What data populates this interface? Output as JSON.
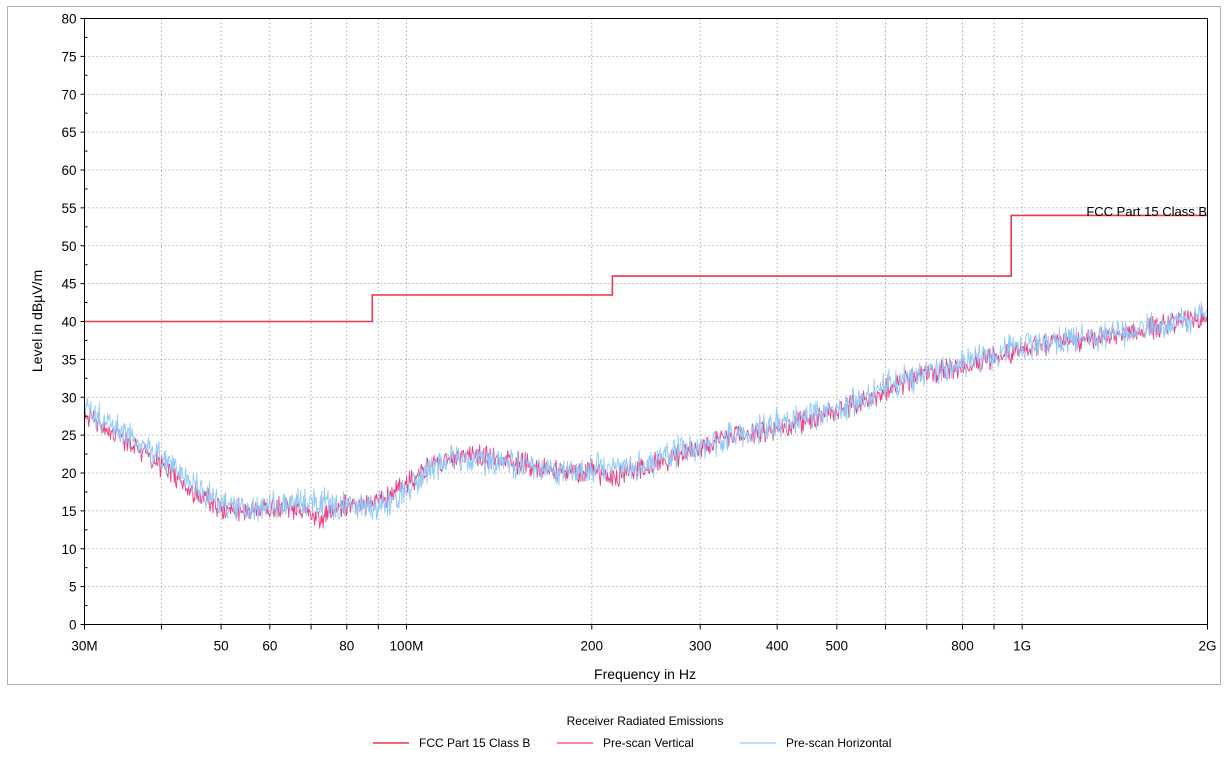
{
  "chart_data": {
    "type": "line",
    "xlabel": "Frequency in Hz",
    "ylabel": "Level in dBµV/m",
    "x_scale": "log",
    "xlim": [
      30000000,
      2000000000
    ],
    "ylim": [
      0,
      80
    ],
    "grid": true,
    "y_ticks": [
      0,
      5,
      10,
      15,
      20,
      25,
      30,
      35,
      40,
      45,
      50,
      55,
      60,
      65,
      70,
      75,
      80
    ],
    "x_tick_labels": [
      {
        "value": 30000000,
        "label": "30M"
      },
      {
        "value": 50000000,
        "label": "50"
      },
      {
        "value": 60000000,
        "label": "60"
      },
      {
        "value": 80000000,
        "label": "80"
      },
      {
        "value": 100000000,
        "label": "100M"
      },
      {
        "value": 200000000,
        "label": "200"
      },
      {
        "value": 300000000,
        "label": "300"
      },
      {
        "value": 400000000,
        "label": "400"
      },
      {
        "value": 500000000,
        "label": "500"
      },
      {
        "value": 800000000,
        "label": "800"
      },
      {
        "value": 1000000000,
        "label": "1G"
      },
      {
        "value": 2000000000,
        "label": "2G"
      }
    ],
    "x_minor_ticks": [
      40000000,
      70000000,
      90000000,
      600000000,
      700000000,
      900000000
    ],
    "legend_title": "Receiver Radiated Emissions",
    "legend_position": "bottom",
    "series": [
      {
        "name": "FCC Part 15 Class B",
        "color": "#e8394a",
        "style": "step",
        "annotation": "FCC Part 15 Class B",
        "points": [
          [
            30000000,
            40
          ],
          [
            88000000,
            40
          ],
          [
            88000000,
            43.5
          ],
          [
            216000000,
            43.5
          ],
          [
            216000000,
            46
          ],
          [
            960000000,
            46
          ],
          [
            960000000,
            54
          ],
          [
            2000000000,
            54
          ]
        ]
      },
      {
        "name": "Pre-scan Vertical",
        "color": "#ee3f85",
        "style": "noisy",
        "noise": 2.2,
        "points": [
          [
            30000000,
            27.5
          ],
          [
            33000000,
            25.5
          ],
          [
            36000000,
            23.5
          ],
          [
            40000000,
            21
          ],
          [
            45000000,
            17.5
          ],
          [
            50000000,
            15.5
          ],
          [
            55000000,
            15
          ],
          [
            60000000,
            15.3
          ],
          [
            65000000,
            15.5
          ],
          [
            70000000,
            14.5
          ],
          [
            73000000,
            14
          ],
          [
            78000000,
            15.5
          ],
          [
            85000000,
            16
          ],
          [
            92000000,
            16.5
          ],
          [
            100000000,
            18.5
          ],
          [
            110000000,
            21
          ],
          [
            120000000,
            22
          ],
          [
            130000000,
            22.5
          ],
          [
            140000000,
            22
          ],
          [
            150000000,
            21.5
          ],
          [
            170000000,
            20.5
          ],
          [
            190000000,
            20
          ],
          [
            200000000,
            20.5
          ],
          [
            215000000,
            19.5
          ],
          [
            230000000,
            20
          ],
          [
            250000000,
            21
          ],
          [
            270000000,
            22
          ],
          [
            300000000,
            23.5
          ],
          [
            350000000,
            25
          ],
          [
            400000000,
            26
          ],
          [
            450000000,
            27
          ],
          [
            500000000,
            28
          ],
          [
            550000000,
            29.5
          ],
          [
            600000000,
            31
          ],
          [
            700000000,
            33
          ],
          [
            800000000,
            34
          ],
          [
            900000000,
            35
          ],
          [
            1000000000,
            36.5
          ],
          [
            1200000000,
            37.5
          ],
          [
            1400000000,
            38
          ],
          [
            1600000000,
            39
          ],
          [
            1800000000,
            40
          ],
          [
            2000000000,
            40.5
          ]
        ]
      },
      {
        "name": "Pre-scan Horizontal",
        "color": "#93c9f6",
        "style": "noisy",
        "noise": 2.8,
        "points": [
          [
            30000000,
            28.5
          ],
          [
            33000000,
            26.5
          ],
          [
            36000000,
            24.5
          ],
          [
            40000000,
            22
          ],
          [
            45000000,
            18.5
          ],
          [
            50000000,
            16
          ],
          [
            55000000,
            15
          ],
          [
            60000000,
            15.5
          ],
          [
            65000000,
            16
          ],
          [
            70000000,
            16.2
          ],
          [
            75000000,
            16
          ],
          [
            80000000,
            15.8
          ],
          [
            85000000,
            15.5
          ],
          [
            90000000,
            15.5
          ],
          [
            95000000,
            16.5
          ],
          [
            100000000,
            18
          ],
          [
            110000000,
            20.5
          ],
          [
            120000000,
            21.8
          ],
          [
            130000000,
            22
          ],
          [
            140000000,
            21.5
          ],
          [
            150000000,
            21
          ],
          [
            170000000,
            20.5
          ],
          [
            190000000,
            20.3
          ],
          [
            200000000,
            21
          ],
          [
            210000000,
            20.5
          ],
          [
            230000000,
            20.5
          ],
          [
            250000000,
            21.5
          ],
          [
            270000000,
            22.5
          ],
          [
            300000000,
            23.5
          ],
          [
            350000000,
            25
          ],
          [
            400000000,
            26.5
          ],
          [
            450000000,
            27.5
          ],
          [
            500000000,
            28.5
          ],
          [
            550000000,
            30
          ],
          [
            600000000,
            31.5
          ],
          [
            700000000,
            33
          ],
          [
            800000000,
            34.5
          ],
          [
            900000000,
            35.5
          ],
          [
            1000000000,
            36.8
          ],
          [
            1200000000,
            37.8
          ],
          [
            1400000000,
            38.2
          ],
          [
            1600000000,
            39.2
          ],
          [
            1800000000,
            40
          ],
          [
            2000000000,
            40.8
          ]
        ]
      }
    ]
  }
}
